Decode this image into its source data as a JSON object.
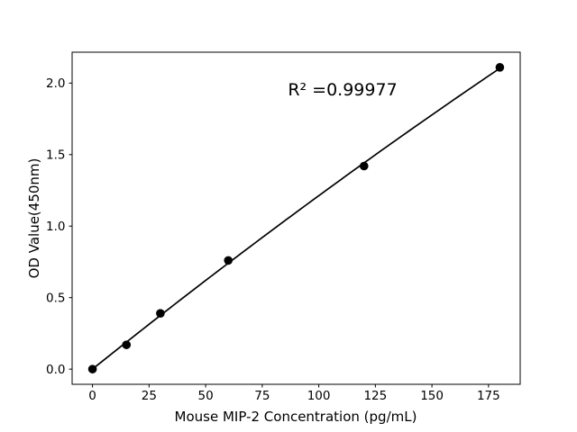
{
  "figure": {
    "background": "#ffffff"
  },
  "chart_data": {
    "type": "scatter",
    "title": "",
    "xlabel": "Mouse MIP-2 Concentration (pg/mL)",
    "ylabel": "OD Value(450nm)",
    "annotation": "R² =0.99977",
    "r_squared": 0.99977,
    "x": [
      0,
      15,
      30,
      60,
      120,
      180
    ],
    "y": [
      0.0,
      0.17,
      0.39,
      0.76,
      1.42,
      2.11
    ],
    "fit": {
      "type": "quadratic",
      "coefficients": [
        0.000178,
        0.0126754,
        -5.5e-06
      ],
      "x_start": 0,
      "x_end": 180
    },
    "xlim": [
      -9,
      189
    ],
    "ylim": [
      -0.106,
      2.216
    ],
    "xticks": [
      0,
      25,
      50,
      75,
      100,
      125,
      150,
      175
    ],
    "xtick_labels": [
      "0",
      "25",
      "50",
      "75",
      "100",
      "125",
      "150",
      "175"
    ],
    "yticks": [
      0.0,
      0.5,
      1.0,
      1.5,
      2.0
    ],
    "ytick_labels": [
      "0.0",
      "0.5",
      "1.0",
      "1.5",
      "2.0"
    ],
    "grid": false,
    "legend": null,
    "line_color": "#000000",
    "marker_color": "#000000",
    "axis_color": "#000000",
    "background": "#ffffff"
  }
}
